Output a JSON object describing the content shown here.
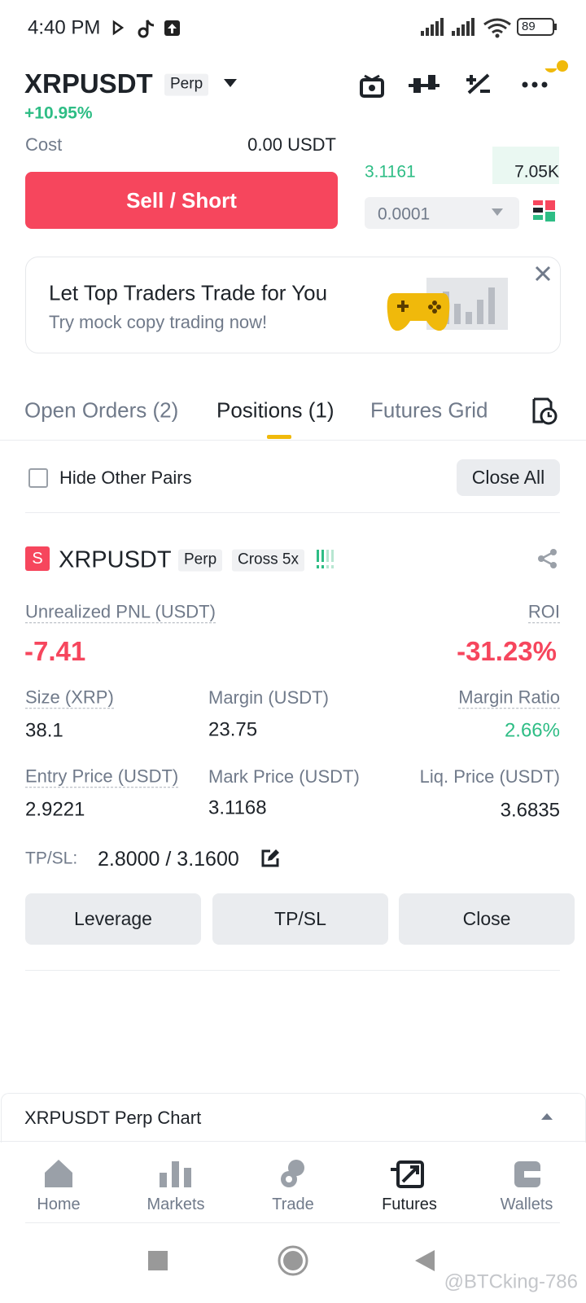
{
  "status_bar": {
    "time": "4:40 PM",
    "battery": "89"
  },
  "header": {
    "symbol": "XRPUSDT",
    "contract": "Perp",
    "change": "+10.95%"
  },
  "order_panel": {
    "cost_label": "Cost",
    "cost_value": "0.00 USDT",
    "price": "3.1161",
    "amount": "7.05K",
    "sell_button": "Sell / Short",
    "tick_size": "0.0001"
  },
  "banner": {
    "title": "Let Top Traders Trade for You",
    "subtitle": "Try mock copy trading now!"
  },
  "tabs": [
    "Open Orders (2)",
    "Positions (1)",
    "Futures Grid"
  ],
  "positions_toolbar": {
    "hide_other_pairs": "Hide Other Pairs",
    "close_all": "Close All"
  },
  "position": {
    "side": "S",
    "symbol": "XRPUSDT",
    "contract": "Perp",
    "margin_mode": "Cross 5x",
    "pnl_label": "Unrealized PNL (USDT)",
    "pnl": "-7.41",
    "roi_label": "ROI",
    "roi": "-31.23%",
    "fields": [
      {
        "label": "Size (XRP)",
        "value": "38.1"
      },
      {
        "label": "Margin (USDT)",
        "value": "23.75"
      },
      {
        "label": "Margin Ratio",
        "value": "2.66%"
      },
      {
        "label": "Entry Price (USDT)",
        "value": "2.9221"
      },
      {
        "label": "Mark Price (USDT)",
        "value": "3.1168"
      },
      {
        "label": "Liq. Price (USDT)",
        "value": "3.6835"
      }
    ],
    "tpsl_label": "TP/SL:",
    "tpsl": "2.8000 / 3.1600",
    "buttons": [
      "Leverage",
      "TP/SL",
      "Close"
    ]
  },
  "chart_bar": {
    "title": "XRPUSDT Perp Chart"
  },
  "bottom_nav": [
    "Home",
    "Markets",
    "Trade",
    "Futures",
    "Wallets"
  ],
  "watermark": "@BTCking-786"
}
